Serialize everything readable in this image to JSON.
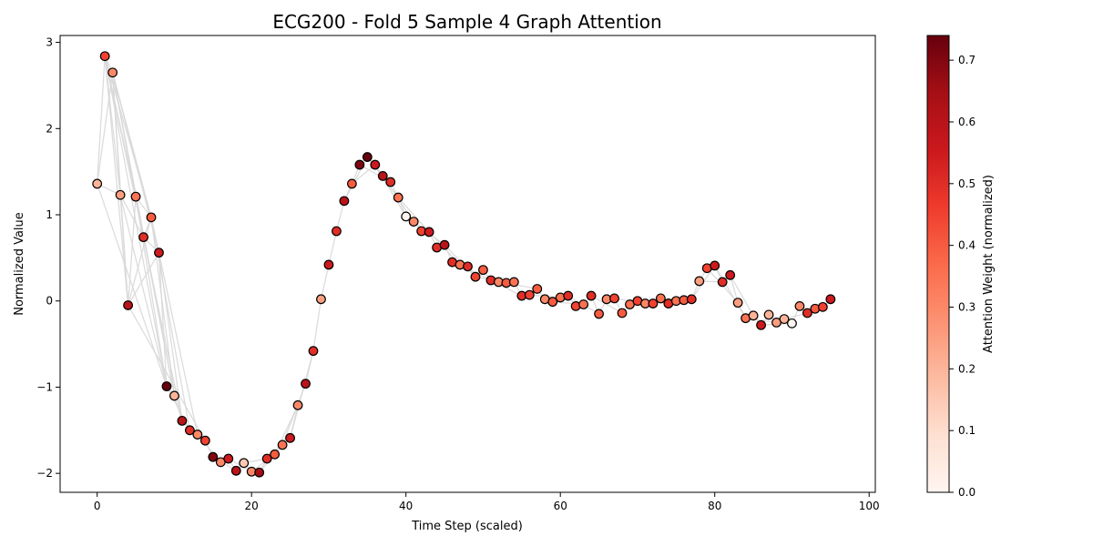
{
  "chart_data": {
    "type": "scatter",
    "title": "ECG200 - Fold 5 Sample 4 Graph Attention",
    "xlabel": "Time Step (scaled)",
    "ylabel": "Normalized Value",
    "xlim": [
      -4.8,
      100.8
    ],
    "ylim": [
      -2.22,
      3.08
    ],
    "xticks": [
      0,
      20,
      40,
      60,
      80,
      100
    ],
    "yticks": [
      -2,
      -1,
      0,
      1,
      2,
      3
    ],
    "ytick_labels": [
      "−2",
      "−1",
      "0",
      "1",
      "2",
      "3"
    ],
    "grid": false,
    "colorbar": {
      "label": "Attention Weight (normalized)",
      "colormap": "Reds",
      "min": 0.0,
      "max": 0.74,
      "ticks": [
        0.0,
        0.1,
        0.2,
        0.3,
        0.4,
        0.5,
        0.6,
        0.7
      ],
      "tick_labels": [
        "0.0",
        "0.1",
        "0.2",
        "0.3",
        "0.4",
        "0.5",
        "0.6",
        "0.7"
      ]
    },
    "points": [
      {
        "x": 0,
        "y": 1.36,
        "w": 0.2
      },
      {
        "x": 1,
        "y": 2.84,
        "w": 0.45
      },
      {
        "x": 2,
        "y": 2.65,
        "w": 0.3
      },
      {
        "x": 3,
        "y": 1.23,
        "w": 0.25
      },
      {
        "x": 4,
        "y": -0.05,
        "w": 0.6
      },
      {
        "x": 5,
        "y": 1.21,
        "w": 0.35
      },
      {
        "x": 6,
        "y": 0.74,
        "w": 0.5
      },
      {
        "x": 7,
        "y": 0.97,
        "w": 0.4
      },
      {
        "x": 8,
        "y": 0.56,
        "w": 0.55
      },
      {
        "x": 9,
        "y": -0.99,
        "w": 0.74
      },
      {
        "x": 10,
        "y": -1.1,
        "w": 0.2
      },
      {
        "x": 11,
        "y": -1.39,
        "w": 0.6
      },
      {
        "x": 12,
        "y": -1.5,
        "w": 0.5
      },
      {
        "x": 13,
        "y": -1.55,
        "w": 0.3
      },
      {
        "x": 14,
        "y": -1.62,
        "w": 0.45
      },
      {
        "x": 15,
        "y": -1.81,
        "w": 0.7
      },
      {
        "x": 16,
        "y": -1.87,
        "w": 0.3
      },
      {
        "x": 17,
        "y": -1.83,
        "w": 0.55
      },
      {
        "x": 18,
        "y": -1.97,
        "w": 0.6
      },
      {
        "x": 19,
        "y": -1.88,
        "w": 0.15
      },
      {
        "x": 20,
        "y": -1.98,
        "w": 0.3
      },
      {
        "x": 21,
        "y": -1.99,
        "w": 0.65
      },
      {
        "x": 22,
        "y": -1.83,
        "w": 0.5
      },
      {
        "x": 23,
        "y": -1.78,
        "w": 0.4
      },
      {
        "x": 24,
        "y": -1.67,
        "w": 0.35
      },
      {
        "x": 25,
        "y": -1.59,
        "w": 0.55
      },
      {
        "x": 26,
        "y": -1.21,
        "w": 0.3
      },
      {
        "x": 27,
        "y": -0.96,
        "w": 0.6
      },
      {
        "x": 28,
        "y": -0.58,
        "w": 0.5
      },
      {
        "x": 29,
        "y": 0.02,
        "w": 0.25
      },
      {
        "x": 30,
        "y": 0.42,
        "w": 0.55
      },
      {
        "x": 31,
        "y": 0.81,
        "w": 0.5
      },
      {
        "x": 32,
        "y": 1.16,
        "w": 0.6
      },
      {
        "x": 33,
        "y": 1.36,
        "w": 0.4
      },
      {
        "x": 34,
        "y": 1.58,
        "w": 0.7
      },
      {
        "x": 35,
        "y": 1.67,
        "w": 0.74
      },
      {
        "x": 36,
        "y": 1.58,
        "w": 0.55
      },
      {
        "x": 37,
        "y": 1.45,
        "w": 0.6
      },
      {
        "x": 38,
        "y": 1.38,
        "w": 0.5
      },
      {
        "x": 39,
        "y": 1.2,
        "w": 0.35
      },
      {
        "x": 40,
        "y": 0.98,
        "w": 0.0
      },
      {
        "x": 41,
        "y": 0.92,
        "w": 0.3
      },
      {
        "x": 42,
        "y": 0.81,
        "w": 0.45
      },
      {
        "x": 43,
        "y": 0.8,
        "w": 0.55
      },
      {
        "x": 44,
        "y": 0.62,
        "w": 0.5
      },
      {
        "x": 45,
        "y": 0.65,
        "w": 0.6
      },
      {
        "x": 46,
        "y": 0.45,
        "w": 0.5
      },
      {
        "x": 47,
        "y": 0.42,
        "w": 0.35
      },
      {
        "x": 48,
        "y": 0.4,
        "w": 0.5
      },
      {
        "x": 49,
        "y": 0.28,
        "w": 0.45
      },
      {
        "x": 50,
        "y": 0.36,
        "w": 0.4
      },
      {
        "x": 51,
        "y": 0.24,
        "w": 0.5
      },
      {
        "x": 52,
        "y": 0.22,
        "w": 0.3
      },
      {
        "x": 53,
        "y": 0.21,
        "w": 0.4
      },
      {
        "x": 54,
        "y": 0.22,
        "w": 0.35
      },
      {
        "x": 55,
        "y": 0.06,
        "w": 0.5
      },
      {
        "x": 56,
        "y": 0.07,
        "w": 0.45
      },
      {
        "x": 57,
        "y": 0.14,
        "w": 0.4
      },
      {
        "x": 58,
        "y": 0.02,
        "w": 0.3
      },
      {
        "x": 59,
        "y": -0.01,
        "w": 0.4
      },
      {
        "x": 60,
        "y": 0.04,
        "w": 0.35
      },
      {
        "x": 61,
        "y": 0.06,
        "w": 0.5
      },
      {
        "x": 62,
        "y": -0.06,
        "w": 0.45
      },
      {
        "x": 63,
        "y": -0.04,
        "w": 0.35
      },
      {
        "x": 64,
        "y": 0.06,
        "w": 0.5
      },
      {
        "x": 65,
        "y": -0.15,
        "w": 0.4
      },
      {
        "x": 66,
        "y": 0.02,
        "w": 0.3
      },
      {
        "x": 67,
        "y": 0.03,
        "w": 0.45
      },
      {
        "x": 68,
        "y": -0.14,
        "w": 0.4
      },
      {
        "x": 69,
        "y": -0.04,
        "w": 0.35
      },
      {
        "x": 70,
        "y": 0.0,
        "w": 0.45
      },
      {
        "x": 71,
        "y": -0.03,
        "w": 0.3
      },
      {
        "x": 72,
        "y": -0.03,
        "w": 0.45
      },
      {
        "x": 73,
        "y": 0.03,
        "w": 0.35
      },
      {
        "x": 74,
        "y": -0.03,
        "w": 0.5
      },
      {
        "x": 75,
        "y": 0.0,
        "w": 0.35
      },
      {
        "x": 76,
        "y": 0.01,
        "w": 0.4
      },
      {
        "x": 77,
        "y": 0.02,
        "w": 0.5
      },
      {
        "x": 78,
        "y": 0.23,
        "w": 0.25
      },
      {
        "x": 79,
        "y": 0.38,
        "w": 0.45
      },
      {
        "x": 80,
        "y": 0.41,
        "w": 0.55
      },
      {
        "x": 81,
        "y": 0.22,
        "w": 0.5
      },
      {
        "x": 82,
        "y": 0.3,
        "w": 0.55
      },
      {
        "x": 83,
        "y": -0.02,
        "w": 0.25
      },
      {
        "x": 84,
        "y": -0.2,
        "w": 0.35
      },
      {
        "x": 85,
        "y": -0.17,
        "w": 0.2
      },
      {
        "x": 86,
        "y": -0.28,
        "w": 0.55
      },
      {
        "x": 87,
        "y": -0.16,
        "w": 0.2
      },
      {
        "x": 88,
        "y": -0.25,
        "w": 0.25
      },
      {
        "x": 89,
        "y": -0.21,
        "w": 0.2
      },
      {
        "x": 90,
        "y": -0.26,
        "w": 0.0
      },
      {
        "x": 91,
        "y": -0.06,
        "w": 0.3
      },
      {
        "x": 92,
        "y": -0.14,
        "w": 0.5
      },
      {
        "x": 93,
        "y": -0.09,
        "w": 0.4
      },
      {
        "x": 94,
        "y": -0.07,
        "w": 0.45
      },
      {
        "x": 95,
        "y": 0.02,
        "w": 0.55
      }
    ],
    "edges": [
      [
        0,
        1
      ],
      [
        0,
        2
      ],
      [
        0,
        3
      ],
      [
        1,
        2
      ],
      [
        1,
        3
      ],
      [
        1,
        4
      ],
      [
        1,
        5
      ],
      [
        1,
        6
      ],
      [
        1,
        7
      ],
      [
        1,
        9
      ],
      [
        2,
        3
      ],
      [
        2,
        4
      ],
      [
        2,
        5
      ],
      [
        2,
        6
      ],
      [
        2,
        7
      ],
      [
        2,
        8
      ],
      [
        2,
        10
      ],
      [
        3,
        4
      ],
      [
        3,
        6
      ],
      [
        3,
        9
      ],
      [
        4,
        5
      ],
      [
        4,
        7
      ],
      [
        4,
        8
      ],
      [
        5,
        6
      ],
      [
        5,
        7
      ],
      [
        5,
        9
      ],
      [
        5,
        10
      ],
      [
        6,
        7
      ],
      [
        6,
        8
      ],
      [
        6,
        11
      ],
      [
        7,
        8
      ],
      [
        7,
        10
      ],
      [
        7,
        12
      ],
      [
        8,
        9
      ],
      [
        8,
        11
      ],
      [
        8,
        13
      ],
      [
        0,
        9
      ],
      [
        4,
        14
      ],
      [
        9,
        10
      ],
      [
        9,
        12
      ],
      [
        10,
        11
      ],
      [
        11,
        12
      ],
      [
        11,
        14
      ],
      [
        12,
        13
      ],
      [
        13,
        14
      ],
      [
        13,
        16
      ],
      [
        14,
        15
      ],
      [
        15,
        16
      ],
      [
        15,
        18
      ],
      [
        16,
        17
      ],
      [
        17,
        18
      ],
      [
        17,
        20
      ],
      [
        18,
        19
      ],
      [
        19,
        20
      ],
      [
        19,
        22
      ],
      [
        20,
        21
      ],
      [
        20,
        23
      ],
      [
        21,
        22
      ],
      [
        21,
        24
      ],
      [
        22,
        23
      ],
      [
        23,
        24
      ],
      [
        23,
        26
      ],
      [
        24,
        25
      ],
      [
        24,
        27
      ],
      [
        25,
        26
      ],
      [
        25,
        28
      ],
      [
        26,
        27
      ],
      [
        27,
        28
      ],
      [
        28,
        29
      ],
      [
        29,
        30
      ],
      [
        30,
        31
      ],
      [
        31,
        32
      ],
      [
        32,
        33
      ],
      [
        32,
        35
      ],
      [
        33,
        34
      ],
      [
        33,
        36
      ],
      [
        34,
        35
      ],
      [
        34,
        38
      ],
      [
        35,
        36
      ],
      [
        35,
        37
      ],
      [
        35,
        39
      ],
      [
        36,
        37
      ],
      [
        36,
        40
      ],
      [
        37,
        38
      ],
      [
        37,
        41
      ],
      [
        38,
        39
      ],
      [
        39,
        40
      ],
      [
        39,
        43
      ],
      [
        40,
        41
      ],
      [
        41,
        42
      ],
      [
        41,
        45
      ],
      [
        42,
        43
      ],
      [
        43,
        44
      ],
      [
        43,
        47
      ],
      [
        44,
        45
      ],
      [
        45,
        46
      ],
      [
        45,
        49
      ],
      [
        46,
        47
      ],
      [
        47,
        48
      ],
      [
        47,
        51
      ],
      [
        48,
        49
      ],
      [
        49,
        50
      ],
      [
        49,
        53
      ],
      [
        50,
        51
      ],
      [
        51,
        52
      ],
      [
        51,
        55
      ],
      [
        52,
        53
      ],
      [
        53,
        54
      ],
      [
        53,
        57
      ],
      [
        54,
        55
      ],
      [
        55,
        56
      ],
      [
        56,
        57
      ],
      [
        56,
        60
      ],
      [
        57,
        58
      ],
      [
        58,
        59
      ],
      [
        59,
        60
      ],
      [
        59,
        63
      ],
      [
        60,
        61
      ],
      [
        61,
        62
      ],
      [
        61,
        65
      ],
      [
        62,
        63
      ],
      [
        63,
        64
      ],
      [
        64,
        65
      ],
      [
        64,
        68
      ],
      [
        65,
        66
      ],
      [
        66,
        67
      ],
      [
        67,
        68
      ],
      [
        67,
        71
      ],
      [
        68,
        69
      ],
      [
        69,
        70
      ],
      [
        70,
        71
      ],
      [
        70,
        74
      ],
      [
        71,
        72
      ],
      [
        72,
        73
      ],
      [
        73,
        74
      ],
      [
        73,
        77
      ],
      [
        74,
        75
      ],
      [
        75,
        76
      ],
      [
        76,
        77
      ],
      [
        77,
        78
      ],
      [
        77,
        80
      ],
      [
        78,
        79
      ],
      [
        78,
        81
      ],
      [
        79,
        80
      ],
      [
        79,
        83
      ],
      [
        80,
        81
      ],
      [
        80,
        84
      ],
      [
        81,
        82
      ],
      [
        82,
        83
      ],
      [
        82,
        85
      ],
      [
        83,
        84
      ],
      [
        84,
        85
      ],
      [
        84,
        88
      ],
      [
        85,
        86
      ],
      [
        86,
        87
      ],
      [
        86,
        90
      ],
      [
        87,
        88
      ],
      [
        88,
        89
      ],
      [
        89,
        90
      ],
      [
        89,
        92
      ],
      [
        90,
        91
      ],
      [
        91,
        92
      ],
      [
        92,
        93
      ],
      [
        93,
        94
      ],
      [
        94,
        95
      ]
    ]
  }
}
